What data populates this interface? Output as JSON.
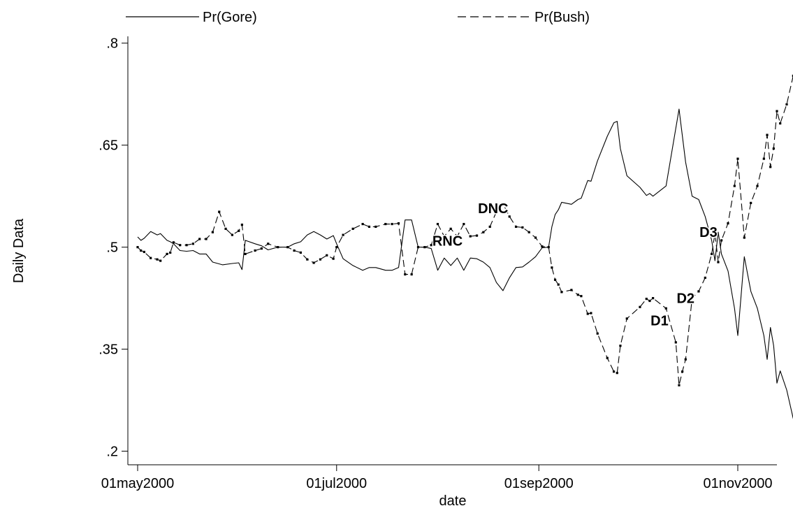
{
  "chart_data": {
    "type": "line",
    "title": "",
    "xlabel": "date",
    "ylabel": "Daily Data",
    "xlim": [
      "2000-04-28",
      "2000-11-13"
    ],
    "ylim": [
      0.18,
      0.81
    ],
    "y_ticks": [
      {
        "value": 0.2,
        "label": ".2"
      },
      {
        "value": 0.35,
        "label": ".35"
      },
      {
        "value": 0.5,
        "label": ".5"
      },
      {
        "value": 0.65,
        "label": ".65"
      },
      {
        "value": 0.8,
        "label": ".8"
      }
    ],
    "x_ticks": [
      {
        "value": "2000-05-01",
        "label": "01may2000"
      },
      {
        "value": "2000-07-01",
        "label": "01jul2000"
      },
      {
        "value": "2000-09-01",
        "label": "01sep2000"
      },
      {
        "value": "2000-11-01",
        "label": "01nov2000"
      }
    ],
    "grid": false,
    "legend_position": "top",
    "series": [
      {
        "name": "Pr(Gore)",
        "style": "solid",
        "markers": false,
        "points": [
          [
            "2000-05-01",
            0.515
          ],
          [
            "2000-05-02",
            0.51
          ],
          [
            "2000-05-03",
            0.513
          ],
          [
            "2000-05-05",
            0.523
          ],
          [
            "2000-05-07",
            0.518
          ],
          [
            "2000-05-08",
            0.52
          ],
          [
            "2000-05-10",
            0.51
          ],
          [
            "2000-05-11",
            0.508
          ],
          [
            "2000-05-12",
            0.505
          ],
          [
            "2000-05-14",
            0.495
          ],
          [
            "2000-05-16",
            0.494
          ],
          [
            "2000-05-18",
            0.495
          ],
          [
            "2000-05-20",
            0.49
          ],
          [
            "2000-05-22",
            0.49
          ],
          [
            "2000-05-24",
            0.478
          ],
          [
            "2000-05-27",
            0.474
          ],
          [
            "2000-05-30",
            0.476
          ],
          [
            "2000-06-01",
            0.477
          ],
          [
            "2000-06-02",
            0.467
          ],
          [
            "2000-06-03",
            0.51
          ],
          [
            "2000-06-06",
            0.505
          ],
          [
            "2000-06-08",
            0.502
          ],
          [
            "2000-06-10",
            0.496
          ],
          [
            "2000-06-13",
            0.5
          ],
          [
            "2000-06-16",
            0.5
          ],
          [
            "2000-06-18",
            0.505
          ],
          [
            "2000-06-20",
            0.508
          ],
          [
            "2000-06-22",
            0.518
          ],
          [
            "2000-06-24",
            0.523
          ],
          [
            "2000-06-26",
            0.518
          ],
          [
            "2000-06-28",
            0.512
          ],
          [
            "2000-06-30",
            0.517
          ],
          [
            "2000-07-01",
            0.505
          ],
          [
            "2000-07-03",
            0.483
          ],
          [
            "2000-07-06",
            0.473
          ],
          [
            "2000-07-09",
            0.466
          ],
          [
            "2000-07-11",
            0.47
          ],
          [
            "2000-07-13",
            0.47
          ],
          [
            "2000-07-16",
            0.466
          ],
          [
            "2000-07-18",
            0.466
          ],
          [
            "2000-07-20",
            0.47
          ],
          [
            "2000-07-22",
            0.54
          ],
          [
            "2000-07-24",
            0.54
          ],
          [
            "2000-07-26",
            0.5
          ],
          [
            "2000-07-28",
            0.5
          ],
          [
            "2000-07-30",
            0.498
          ],
          [
            "2000-08-01",
            0.466
          ],
          [
            "2000-08-03",
            0.484
          ],
          [
            "2000-08-05",
            0.473
          ],
          [
            "2000-08-07",
            0.484
          ],
          [
            "2000-08-09",
            0.466
          ],
          [
            "2000-08-11",
            0.484
          ],
          [
            "2000-08-13",
            0.483
          ],
          [
            "2000-08-15",
            0.478
          ],
          [
            "2000-08-17",
            0.47
          ],
          [
            "2000-08-19",
            0.448
          ],
          [
            "2000-08-21",
            0.436
          ],
          [
            "2000-08-23",
            0.455
          ],
          [
            "2000-08-25",
            0.47
          ],
          [
            "2000-08-27",
            0.471
          ],
          [
            "2000-08-29",
            0.478
          ],
          [
            "2000-08-31",
            0.486
          ],
          [
            "2000-09-02",
            0.499
          ],
          [
            "2000-09-04",
            0.5
          ],
          [
            "2000-09-05",
            0.53
          ],
          [
            "2000-09-06",
            0.548
          ],
          [
            "2000-09-07",
            0.555
          ],
          [
            "2000-09-08",
            0.566
          ],
          [
            "2000-09-11",
            0.563
          ],
          [
            "2000-09-13",
            0.57
          ],
          [
            "2000-09-14",
            0.572
          ],
          [
            "2000-09-16",
            0.598
          ],
          [
            "2000-09-17",
            0.597
          ],
          [
            "2000-09-19",
            0.627
          ],
          [
            "2000-09-22",
            0.663
          ],
          [
            "2000-09-24",
            0.683
          ],
          [
            "2000-09-25",
            0.685
          ],
          [
            "2000-09-26",
            0.645
          ],
          [
            "2000-09-28",
            0.605
          ],
          [
            "2000-10-02",
            0.588
          ],
          [
            "2000-10-04",
            0.576
          ],
          [
            "2000-10-05",
            0.579
          ],
          [
            "2000-10-06",
            0.575
          ],
          [
            "2000-10-10",
            0.59
          ],
          [
            "2000-10-14",
            0.703
          ],
          [
            "2000-10-16",
            0.625
          ],
          [
            "2000-10-18",
            0.575
          ],
          [
            "2000-10-20",
            0.57
          ],
          [
            "2000-10-22",
            0.545
          ],
          [
            "2000-10-24",
            0.51
          ],
          [
            "2000-10-25",
            0.48
          ],
          [
            "2000-10-26",
            0.522
          ],
          [
            "2000-10-27",
            0.49
          ],
          [
            "2000-10-29",
            0.465
          ],
          [
            "2000-10-31",
            0.41
          ],
          [
            "2000-11-01",
            0.37
          ],
          [
            "2000-11-03",
            0.486
          ],
          [
            "2000-11-05",
            0.435
          ],
          [
            "2000-11-07",
            0.41
          ],
          [
            "2000-11-09",
            0.37
          ],
          [
            "2000-11-10",
            0.335
          ],
          [
            "2000-11-11",
            0.382
          ],
          [
            "2000-11-12",
            0.355
          ],
          [
            "2000-11-13",
            0.3
          ],
          [
            "2000-11-14",
            0.318
          ],
          [
            "2000-11-16",
            0.29
          ],
          [
            "2000-11-18",
            0.248
          ],
          [
            "2000-11-19",
            0.24
          ]
        ]
      },
      {
        "name": "Pr(Bush)",
        "style": "dashed",
        "markers": true,
        "points": [
          [
            "2000-05-01",
            0.5
          ],
          [
            "2000-05-02",
            0.495
          ],
          [
            "2000-05-03",
            0.493
          ],
          [
            "2000-05-05",
            0.484
          ],
          [
            "2000-05-07",
            0.482
          ],
          [
            "2000-05-08",
            0.48
          ],
          [
            "2000-05-10",
            0.49
          ],
          [
            "2000-05-11",
            0.492
          ],
          [
            "2000-05-12",
            0.507
          ],
          [
            "2000-05-14",
            0.503
          ],
          [
            "2000-05-16",
            0.503
          ],
          [
            "2000-05-18",
            0.505
          ],
          [
            "2000-05-20",
            0.512
          ],
          [
            "2000-05-22",
            0.512
          ],
          [
            "2000-05-24",
            0.522
          ],
          [
            "2000-05-26",
            0.552
          ],
          [
            "2000-05-28",
            0.527
          ],
          [
            "2000-05-30",
            0.518
          ],
          [
            "2000-06-01",
            0.524
          ],
          [
            "2000-06-02",
            0.533
          ],
          [
            "2000-06-03",
            0.49
          ],
          [
            "2000-06-06",
            0.495
          ],
          [
            "2000-06-08",
            0.498
          ],
          [
            "2000-06-10",
            0.505
          ],
          [
            "2000-06-13",
            0.5
          ],
          [
            "2000-06-16",
            0.5
          ],
          [
            "2000-06-18",
            0.495
          ],
          [
            "2000-06-20",
            0.492
          ],
          [
            "2000-06-22",
            0.482
          ],
          [
            "2000-06-24",
            0.477
          ],
          [
            "2000-06-26",
            0.482
          ],
          [
            "2000-06-28",
            0.488
          ],
          [
            "2000-06-30",
            0.483
          ],
          [
            "2000-07-01",
            0.5
          ],
          [
            "2000-07-03",
            0.518
          ],
          [
            "2000-07-06",
            0.527
          ],
          [
            "2000-07-09",
            0.534
          ],
          [
            "2000-07-11",
            0.53
          ],
          [
            "2000-07-13",
            0.53
          ],
          [
            "2000-07-16",
            0.534
          ],
          [
            "2000-07-18",
            0.534
          ],
          [
            "2000-07-20",
            0.535
          ],
          [
            "2000-07-22",
            0.46
          ],
          [
            "2000-07-24",
            0.46
          ],
          [
            "2000-07-26",
            0.5
          ],
          [
            "2000-07-28",
            0.5
          ],
          [
            "2000-07-30",
            0.503
          ],
          [
            "2000-08-01",
            0.534
          ],
          [
            "2000-08-03",
            0.516
          ],
          [
            "2000-08-05",
            0.527
          ],
          [
            "2000-08-07",
            0.516
          ],
          [
            "2000-08-09",
            0.534
          ],
          [
            "2000-08-11",
            0.516
          ],
          [
            "2000-08-13",
            0.517
          ],
          [
            "2000-08-15",
            0.522
          ],
          [
            "2000-08-17",
            0.53
          ],
          [
            "2000-08-19",
            0.552
          ],
          [
            "2000-08-21",
            0.564
          ],
          [
            "2000-08-23",
            0.545
          ],
          [
            "2000-08-25",
            0.53
          ],
          [
            "2000-08-27",
            0.529
          ],
          [
            "2000-08-29",
            0.522
          ],
          [
            "2000-08-31",
            0.514
          ],
          [
            "2000-09-02",
            0.501
          ],
          [
            "2000-09-04",
            0.5
          ],
          [
            "2000-09-05",
            0.47
          ],
          [
            "2000-09-06",
            0.452
          ],
          [
            "2000-09-07",
            0.445
          ],
          [
            "2000-09-08",
            0.434
          ],
          [
            "2000-09-11",
            0.437
          ],
          [
            "2000-09-13",
            0.43
          ],
          [
            "2000-09-14",
            0.428
          ],
          [
            "2000-09-16",
            0.402
          ],
          [
            "2000-09-17",
            0.403
          ],
          [
            "2000-09-19",
            0.373
          ],
          [
            "2000-09-22",
            0.337
          ],
          [
            "2000-09-24",
            0.317
          ],
          [
            "2000-09-25",
            0.315
          ],
          [
            "2000-09-26",
            0.355
          ],
          [
            "2000-09-28",
            0.395
          ],
          [
            "2000-10-02",
            0.412
          ],
          [
            "2000-10-04",
            0.424
          ],
          [
            "2000-10-05",
            0.421
          ],
          [
            "2000-10-06",
            0.425
          ],
          [
            "2000-10-10",
            0.41
          ],
          [
            "2000-10-13",
            0.36
          ],
          [
            "2000-10-14",
            0.297
          ],
          [
            "2000-10-15",
            0.317
          ],
          [
            "2000-10-16",
            0.335
          ],
          [
            "2000-10-18",
            0.425
          ],
          [
            "2000-10-20",
            0.435
          ],
          [
            "2000-10-22",
            0.455
          ],
          [
            "2000-10-24",
            0.49
          ],
          [
            "2000-10-25",
            0.52
          ],
          [
            "2000-10-26",
            0.478
          ],
          [
            "2000-10-27",
            0.51
          ],
          [
            "2000-10-29",
            0.535
          ],
          [
            "2000-10-31",
            0.59
          ],
          [
            "2000-11-01",
            0.63
          ],
          [
            "2000-11-03",
            0.514
          ],
          [
            "2000-11-05",
            0.565
          ],
          [
            "2000-11-07",
            0.59
          ],
          [
            "2000-11-09",
            0.63
          ],
          [
            "2000-11-10",
            0.665
          ],
          [
            "2000-11-11",
            0.618
          ],
          [
            "2000-11-12",
            0.645
          ],
          [
            "2000-11-13",
            0.7
          ],
          [
            "2000-11-14",
            0.682
          ],
          [
            "2000-11-16",
            0.71
          ],
          [
            "2000-11-18",
            0.752
          ],
          [
            "2000-11-19",
            0.76
          ]
        ]
      }
    ],
    "annotations": [
      {
        "text": "RNC",
        "x": "2000-08-04",
        "y": 0.502
      },
      {
        "text": "DNC",
        "x": "2000-08-18",
        "y": 0.55
      },
      {
        "text": "D1",
        "x": "2000-10-08",
        "y": 0.385
      },
      {
        "text": "D2",
        "x": "2000-10-16",
        "y": 0.418
      },
      {
        "text": "D3",
        "x": "2000-10-23",
        "y": 0.515
      }
    ]
  }
}
